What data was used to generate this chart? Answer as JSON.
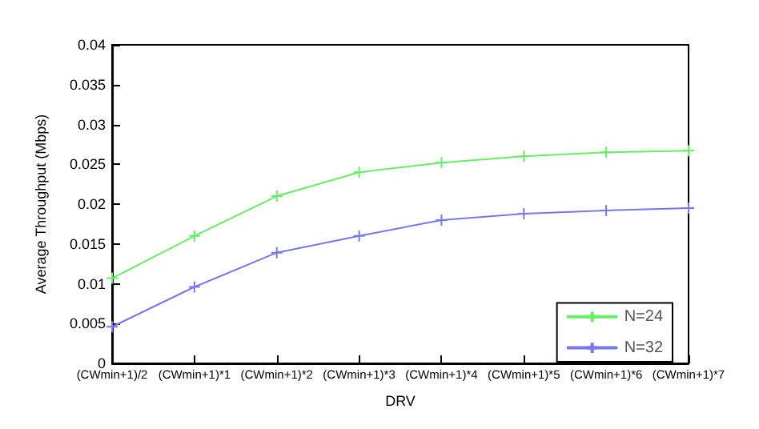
{
  "chart_data": {
    "type": "line",
    "xlabel": "DRV",
    "ylabel": "Average Throughput (Mbps)",
    "categories": [
      "(CWmin+1)/2",
      "(CWmin+1)*1",
      "(CWmin+1)*2",
      "(CWmin+1)*3",
      "(CWmin+1)*4",
      "(CWmin+1)*5",
      "(CWmin+1)*6",
      "(CWmin+1)*7"
    ],
    "series": [
      {
        "name": "N=24",
        "color": "#66ee66",
        "values": [
          0.0107,
          0.016,
          0.021,
          0.024,
          0.0252,
          0.026,
          0.0265,
          0.0267
        ]
      },
      {
        "name": "N=32",
        "color": "#7777ee",
        "values": [
          0.0046,
          0.0096,
          0.0139,
          0.016,
          0.018,
          0.0188,
          0.0192,
          0.0195
        ]
      }
    ],
    "ylim": [
      0,
      0.04
    ],
    "yticks": [
      0,
      0.005,
      0.01,
      0.015,
      0.02,
      0.025,
      0.03,
      0.035,
      0.04
    ],
    "grid": false,
    "legend": "bottom right",
    "marker": "cross",
    "line_style": "solid"
  }
}
